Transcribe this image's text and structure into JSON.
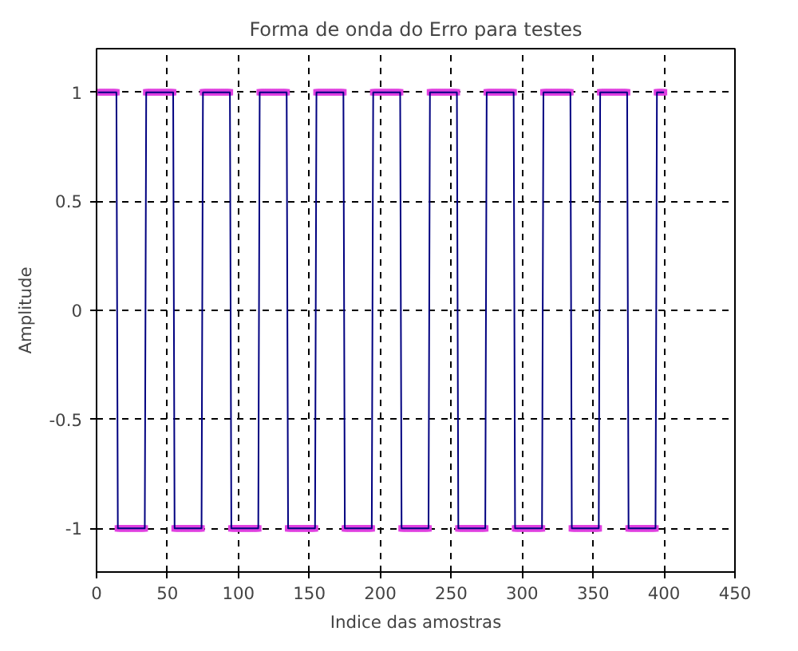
{
  "chart_data": {
    "type": "line",
    "title": "Forma de onda do Erro para testes",
    "xlabel": "Indice das amostras",
    "ylabel": "Amplitude",
    "xlim": [
      0,
      450
    ],
    "ylim": [
      -1.2,
      1.2
    ],
    "xticks": [
      0,
      50,
      100,
      150,
      200,
      250,
      300,
      350,
      400,
      450
    ],
    "yticks": [
      -1,
      -0.5,
      0,
      0.5,
      1
    ],
    "grid": true,
    "line_style": "solid",
    "series": [
      {
        "color": "#000080",
        "x": [
          1,
          14,
          15,
          34,
          35,
          54,
          55,
          74,
          75,
          94,
          95,
          114,
          115,
          134,
          135,
          154,
          155,
          174,
          175,
          194,
          195,
          214,
          215,
          234,
          235,
          254,
          255,
          274,
          275,
          294,
          295,
          314,
          315,
          334,
          335,
          354,
          355,
          374,
          375,
          394,
          395,
          400
        ],
        "values": [
          1,
          1,
          -1,
          -1,
          1,
          1,
          -1,
          -1,
          1,
          1,
          -1,
          -1,
          1,
          1,
          -1,
          -1,
          1,
          1,
          -1,
          -1,
          1,
          1,
          -1,
          -1,
          1,
          1,
          -1,
          -1,
          1,
          1,
          -1,
          -1,
          1,
          1,
          -1,
          -1,
          1,
          1,
          -1,
          -1,
          1,
          1
        ]
      },
      {
        "type": "scatter",
        "marker": "square",
        "color": "#e040e0",
        "x": [
          1,
          2,
          3,
          4,
          5,
          6,
          7,
          8,
          9,
          10,
          11,
          12,
          13,
          14,
          15,
          16,
          17,
          18,
          19,
          20,
          21,
          22,
          23,
          24,
          25,
          26,
          27,
          28,
          29,
          30,
          31,
          32,
          33,
          34,
          35,
          36,
          37,
          38,
          39,
          40,
          41,
          42,
          43,
          44,
          45,
          46,
          47,
          48,
          49,
          50,
          51,
          52,
          53,
          54,
          55,
          56,
          57,
          58,
          59,
          60,
          61,
          62,
          63,
          64,
          65,
          66,
          67,
          68,
          69,
          70,
          71,
          72,
          73,
          74,
          75,
          76,
          77,
          78,
          79,
          80,
          81,
          82,
          83,
          84,
          85,
          86,
          87,
          88,
          89,
          90,
          91,
          92,
          93,
          94,
          95,
          96,
          97,
          98,
          99,
          100,
          101,
          102,
          103,
          104,
          105,
          106,
          107,
          108,
          109,
          110,
          111,
          112,
          113,
          114,
          115,
          116,
          117,
          118,
          119,
          120,
          121,
          122,
          123,
          124,
          125,
          126,
          127,
          128,
          129,
          130,
          131,
          132,
          133,
          134,
          135,
          136,
          137,
          138,
          139,
          140,
          141,
          142,
          143,
          144,
          145,
          146,
          147,
          148,
          149,
          150,
          151,
          152,
          153,
          154,
          155,
          156,
          157,
          158,
          159,
          160,
          161,
          162,
          163,
          164,
          165,
          166,
          167,
          168,
          169,
          170,
          171,
          172,
          173,
          174,
          175,
          176,
          177,
          178,
          179,
          180,
          181,
          182,
          183,
          184,
          185,
          186,
          187,
          188,
          189,
          190,
          191,
          192,
          193,
          194,
          195,
          196,
          197,
          198,
          199,
          200,
          201,
          202,
          203,
          204,
          205,
          206,
          207,
          208,
          209,
          210,
          211,
          212,
          213,
          214,
          215,
          216,
          217,
          218,
          219,
          220,
          221,
          222,
          223,
          224,
          225,
          226,
          227,
          228,
          229,
          230,
          231,
          232,
          233,
          234,
          235,
          236,
          237,
          238,
          239,
          240,
          241,
          242,
          243,
          244,
          245,
          246,
          247,
          248,
          249,
          250,
          251,
          252,
          253,
          254,
          255,
          256,
          257,
          258,
          259,
          260,
          261,
          262,
          263,
          264,
          265,
          266,
          267,
          268,
          269,
          270,
          271,
          272,
          273,
          274,
          275,
          276,
          277,
          278,
          279,
          280,
          281,
          282,
          283,
          284,
          285,
          286,
          287,
          288,
          289,
          290,
          291,
          292,
          293,
          294,
          295,
          296,
          297,
          298,
          299,
          300,
          301,
          302,
          303,
          304,
          305,
          306,
          307,
          308,
          309,
          310,
          311,
          312,
          313,
          314,
          315,
          316,
          317,
          318,
          319,
          320,
          321,
          322,
          323,
          324,
          325,
          326,
          327,
          328,
          329,
          330,
          331,
          332,
          333,
          334,
          335,
          336,
          337,
          338,
          339,
          340,
          341,
          342,
          343,
          344,
          345,
          346,
          347,
          348,
          349,
          350,
          351,
          352,
          353,
          354,
          355,
          356,
          357,
          358,
          359,
          360,
          361,
          362,
          363,
          364,
          365,
          366,
          367,
          368,
          369,
          370,
          371,
          372,
          373,
          374,
          375,
          376,
          377,
          378,
          379,
          380,
          381,
          382,
          383,
          384,
          385,
          386,
          387,
          388,
          389,
          390,
          391,
          392,
          393,
          394,
          395,
          396,
          397,
          398,
          399,
          400
        ],
        "values": [
          1,
          1,
          1,
          1,
          1,
          1,
          1,
          1,
          1,
          1,
          1,
          1,
          1,
          1,
          -1,
          -1,
          -1,
          -1,
          -1,
          -1,
          -1,
          -1,
          -1,
          -1,
          -1,
          -1,
          -1,
          -1,
          -1,
          -1,
          -1,
          -1,
          -1,
          -1,
          1,
          1,
          1,
          1,
          1,
          1,
          1,
          1,
          1,
          1,
          1,
          1,
          1,
          1,
          1,
          1,
          1,
          1,
          1,
          1,
          -1,
          -1,
          -1,
          -1,
          -1,
          -1,
          -1,
          -1,
          -1,
          -1,
          -1,
          -1,
          -1,
          -1,
          -1,
          -1,
          -1,
          -1,
          -1,
          -1,
          1,
          1,
          1,
          1,
          1,
          1,
          1,
          1,
          1,
          1,
          1,
          1,
          1,
          1,
          1,
          1,
          1,
          1,
          1,
          1,
          -1,
          -1,
          -1,
          -1,
          -1,
          -1,
          -1,
          -1,
          -1,
          -1,
          -1,
          -1,
          -1,
          -1,
          -1,
          -1,
          -1,
          -1,
          -1,
          -1,
          1,
          1,
          1,
          1,
          1,
          1,
          1,
          1,
          1,
          1,
          1,
          1,
          1,
          1,
          1,
          1,
          1,
          1,
          1,
          1,
          -1,
          -1,
          -1,
          -1,
          -1,
          -1,
          -1,
          -1,
          -1,
          -1,
          -1,
          -1,
          -1,
          -1,
          -1,
          -1,
          -1,
          -1,
          -1,
          -1,
          1,
          1,
          1,
          1,
          1,
          1,
          1,
          1,
          1,
          1,
          1,
          1,
          1,
          1,
          1,
          1,
          1,
          1,
          1,
          1,
          -1,
          -1,
          -1,
          -1,
          -1,
          -1,
          -1,
          -1,
          -1,
          -1,
          -1,
          -1,
          -1,
          -1,
          -1,
          -1,
          -1,
          -1,
          -1,
          -1,
          1,
          1,
          1,
          1,
          1,
          1,
          1,
          1,
          1,
          1,
          1,
          1,
          1,
          1,
          1,
          1,
          1,
          1,
          1,
          1,
          -1,
          -1,
          -1,
          -1,
          -1,
          -1,
          -1,
          -1,
          -1,
          -1,
          -1,
          -1,
          -1,
          -1,
          -1,
          -1,
          -1,
          -1,
          -1,
          -1,
          1,
          1,
          1,
          1,
          1,
          1,
          1,
          1,
          1,
          1,
          1,
          1,
          1,
          1,
          1,
          1,
          1,
          1,
          1,
          1,
          -1,
          -1,
          -1,
          -1,
          -1,
          -1,
          -1,
          -1,
          -1,
          -1,
          -1,
          -1,
          -1,
          -1,
          -1,
          -1,
          -1,
          -1,
          -1,
          -1,
          1,
          1,
          1,
          1,
          1,
          1,
          1,
          1,
          1,
          1,
          1,
          1,
          1,
          1,
          1,
          1,
          1,
          1,
          1,
          1,
          -1,
          -1,
          -1,
          -1,
          -1,
          -1,
          -1,
          -1,
          -1,
          -1,
          -1,
          -1,
          -1,
          -1,
          -1,
          -1,
          -1,
          -1,
          -1,
          -1,
          1,
          1,
          1,
          1,
          1,
          1,
          1,
          1,
          1,
          1,
          1,
          1,
          1,
          1,
          1,
          1,
          1,
          1,
          1,
          1,
          -1,
          -1,
          -1,
          -1,
          -1,
          -1,
          -1,
          -1,
          -1,
          -1,
          -1,
          -1,
          -1,
          -1,
          -1,
          -1,
          -1,
          -1,
          -1,
          -1,
          1,
          1,
          1,
          1,
          1,
          1,
          1,
          1,
          1,
          1,
          1,
          1,
          1,
          1,
          1,
          1,
          1,
          1,
          1,
          1,
          -1,
          -1,
          -1,
          -1,
          -1,
          -1,
          -1,
          -1,
          -1,
          -1,
          -1,
          -1,
          -1,
          -1,
          -1,
          -1,
          -1,
          -1,
          -1,
          -1,
          1,
          1,
          1,
          1,
          1,
          1
        ]
      }
    ]
  }
}
